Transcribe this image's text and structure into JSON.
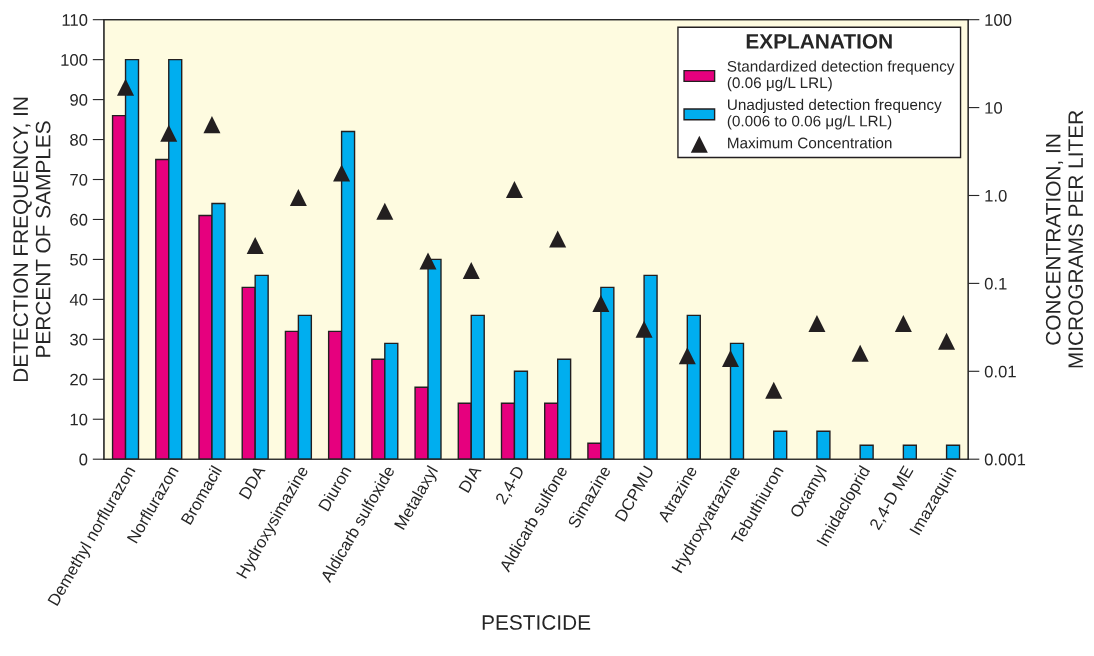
{
  "chart_data": {
    "type": "bar",
    "xlabel": "PESTICIDE",
    "ylabel": "DETECTION FREQUENCY, IN\nPERCENT OF SAMPLES",
    "y2label": "CONCENTRATION, IN\nMICROGRAMS PER LITER",
    "legend_title": "EXPLANATION",
    "legend": "top right",
    "grid": false,
    "categories": [
      "Demethyl norflurazon",
      "Norflurazon",
      "Bromacil",
      "DDA",
      "Hydroxysimazine",
      "Diuron",
      "Aldicarb sulfoxide",
      "Metalaxyl",
      "DIA",
      "2,4-D",
      "Aldicarb sulfone",
      "Simazine",
      "DCPMU",
      "Atrazine",
      "Hydroxyatrazine",
      "Tebuthiuron",
      "Oxamyl",
      "Imidacloprid",
      "2,4-D ME",
      "Imazaquin"
    ],
    "series": [
      {
        "name": "Standardized detection frequency\n(0.06 μg/L LRL)",
        "color": "#e6007e",
        "values": [
          86,
          75,
          61,
          43,
          32,
          32,
          25,
          18,
          14,
          14,
          14,
          4,
          null,
          null,
          null,
          null,
          null,
          null,
          null,
          null
        ]
      },
      {
        "name": "Unadjusted detection frequency\n(0.006 to 0.06 μg/L LRL)",
        "color": "#00aeef",
        "values": [
          100,
          100,
          64,
          46,
          36,
          82,
          29,
          50,
          36,
          22,
          25,
          43,
          46,
          36,
          29,
          7,
          7,
          3.5,
          3.5,
          3.5
        ]
      },
      {
        "name": "Maximum Concentration",
        "type": "scatter",
        "axis": "y2",
        "marker": "triangle",
        "color": "#231f20",
        "values": [
          17,
          5.1,
          6.4,
          0.27,
          0.95,
          1.8,
          0.66,
          0.18,
          0.14,
          1.17,
          0.32,
          0.059,
          0.03,
          0.015,
          0.014,
          0.0061,
          0.035,
          0.016,
          0.035,
          0.022
        ]
      }
    ],
    "ylim": [
      0,
      110
    ],
    "yticks": [
      0,
      10,
      20,
      30,
      40,
      50,
      60,
      70,
      80,
      90,
      100,
      110
    ],
    "log": "y2",
    "y2lim": [
      0.001,
      100
    ],
    "y2ticks": [
      {
        "value": 0.001,
        "label": "0.001"
      },
      {
        "value": 0.01,
        "label": "0.01"
      },
      {
        "value": 0.1,
        "label": "0.1"
      },
      {
        "value": 1,
        "label": "1.0"
      },
      {
        "value": 10,
        "label": "10"
      },
      {
        "value": 100,
        "label": "100"
      }
    ]
  }
}
